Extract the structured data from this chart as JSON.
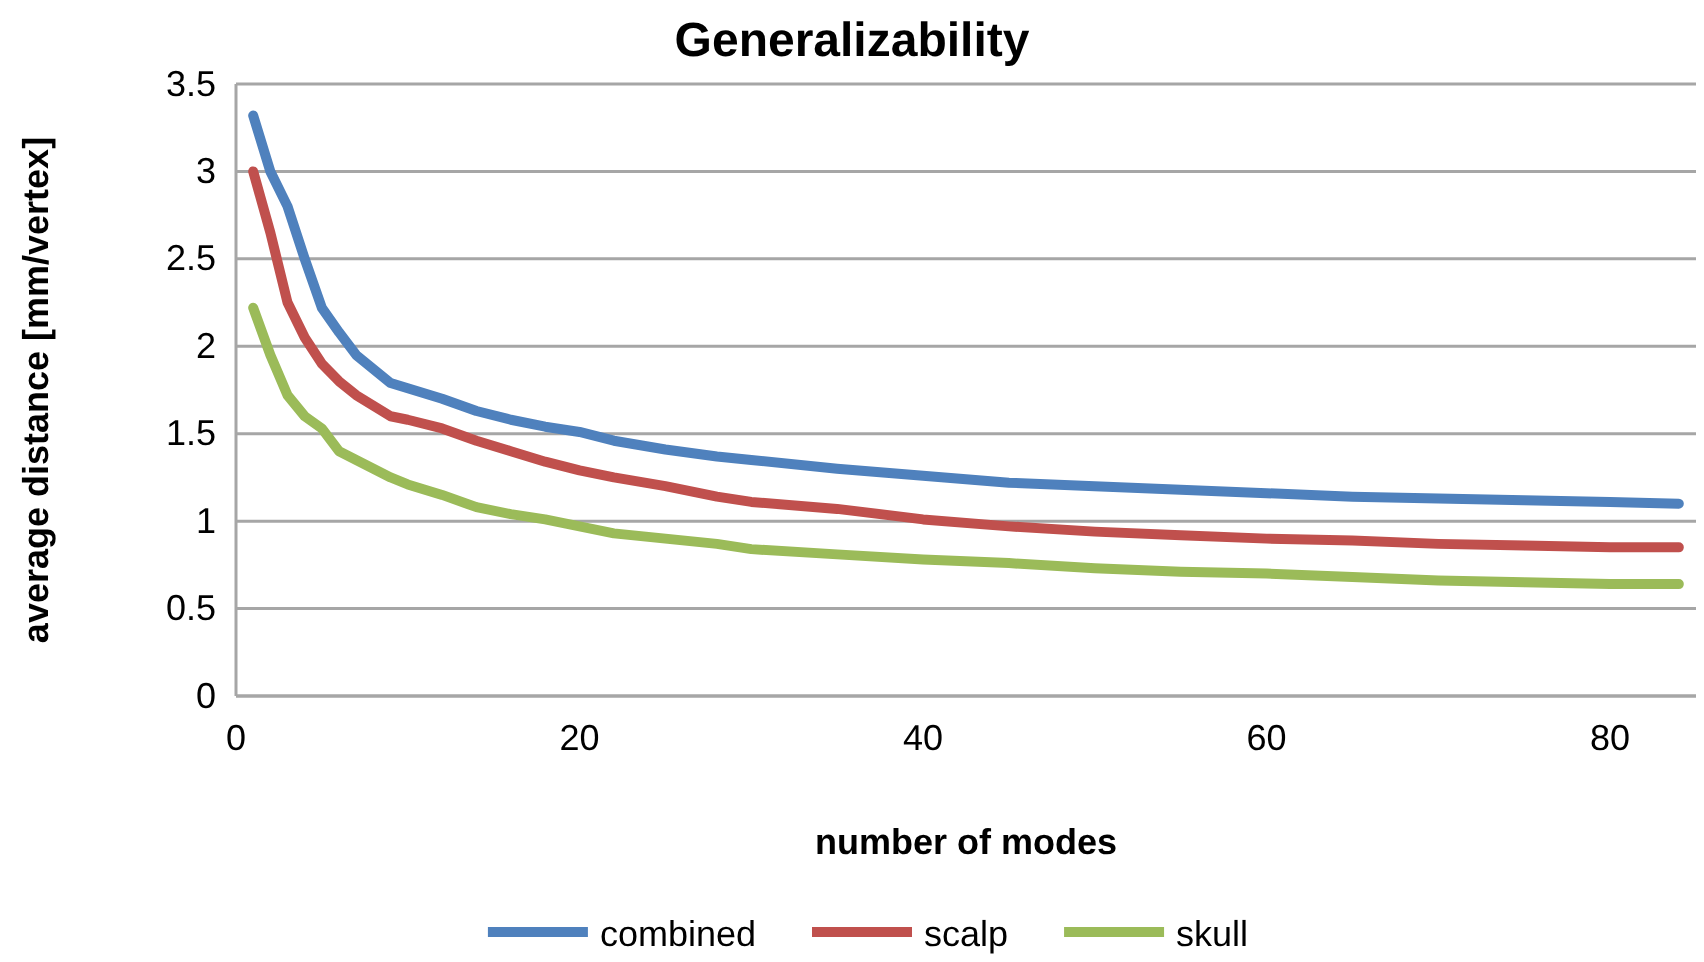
{
  "chart_data": {
    "type": "line",
    "title": "Generalizability",
    "xlabel": "number of modes",
    "ylabel": "average distance [mm/vertex]",
    "x": [
      1,
      2,
      3,
      4,
      5,
      6,
      7,
      8,
      9,
      10,
      12,
      14,
      16,
      18,
      20,
      22,
      25,
      28,
      30,
      35,
      40,
      45,
      50,
      55,
      60,
      65,
      70,
      75,
      80,
      84
    ],
    "series": [
      {
        "name": "combined",
        "color": "#4f81bd",
        "values": [
          3.32,
          3.0,
          2.8,
          2.5,
          2.22,
          2.08,
          1.95,
          1.87,
          1.79,
          1.76,
          1.7,
          1.63,
          1.58,
          1.54,
          1.51,
          1.46,
          1.41,
          1.37,
          1.35,
          1.3,
          1.26,
          1.22,
          1.2,
          1.18,
          1.16,
          1.14,
          1.13,
          1.12,
          1.11,
          1.1
        ]
      },
      {
        "name": "scalp",
        "color": "#c0504d",
        "values": [
          3.0,
          2.65,
          2.25,
          2.05,
          1.9,
          1.8,
          1.72,
          1.66,
          1.6,
          1.58,
          1.53,
          1.46,
          1.4,
          1.34,
          1.29,
          1.25,
          1.2,
          1.14,
          1.11,
          1.07,
          1.01,
          0.97,
          0.94,
          0.92,
          0.9,
          0.89,
          0.87,
          0.86,
          0.85,
          0.85
        ]
      },
      {
        "name": "skull",
        "color": "#9bbb59",
        "values": [
          2.22,
          1.95,
          1.72,
          1.6,
          1.53,
          1.4,
          1.35,
          1.3,
          1.25,
          1.21,
          1.15,
          1.08,
          1.04,
          1.01,
          0.97,
          0.93,
          0.9,
          0.87,
          0.84,
          0.81,
          0.78,
          0.76,
          0.73,
          0.71,
          0.7,
          0.68,
          0.66,
          0.65,
          0.64,
          0.64
        ]
      }
    ],
    "xlim": [
      0,
      85
    ],
    "xticks": [
      0,
      20,
      40,
      60,
      80
    ],
    "ylim": [
      0,
      3.5
    ],
    "yticks": [
      0,
      0.5,
      1,
      1.5,
      2,
      2.5,
      3,
      3.5
    ],
    "grid": "y",
    "legend": "bottom",
    "marker": "none",
    "line_style": "solid"
  }
}
